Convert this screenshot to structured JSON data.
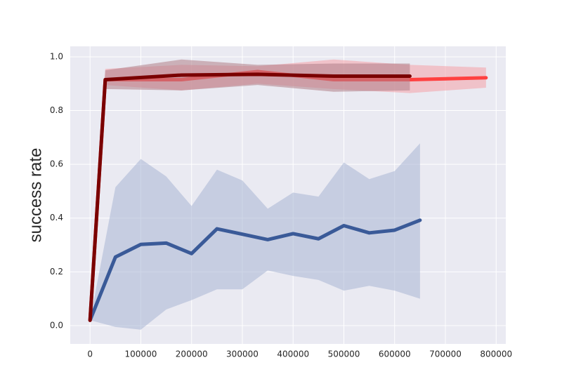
{
  "chart_data": {
    "type": "line",
    "y_label": "success rate",
    "xlim": [
      -39000,
      819000
    ],
    "ylim": [
      -0.068,
      1.039
    ],
    "xticks": [
      0,
      100000,
      200000,
      300000,
      400000,
      500000,
      600000,
      700000,
      800000
    ],
    "yticks": [
      {
        "value": 0,
        "label": "0.0"
      },
      0.2,
      0.4,
      0.6,
      0.8,
      {
        "value": 1,
        "label": "1.0"
      }
    ],
    "grid": true,
    "series": [
      {
        "color": "#3a5a98",
        "band_color": "#a8b4d4",
        "x": [
          0,
          50000,
          100000,
          150000,
          200000,
          250000,
          300000,
          350000,
          400000,
          450000,
          500000,
          550000,
          600000,
          650000
        ],
        "values": [
          0.02,
          0.255,
          0.302,
          0.307,
          0.268,
          0.36,
          0.34,
          0.32,
          0.342,
          0.323,
          0.372,
          0.345,
          0.355,
          0.392
        ],
        "lower": [
          0.02,
          -0.005,
          -0.015,
          0.06,
          0.095,
          0.135,
          0.135,
          0.205,
          0.185,
          0.17,
          0.13,
          0.148,
          0.13,
          0.1
        ],
        "upper": [
          0.02,
          0.515,
          0.62,
          0.555,
          0.445,
          0.58,
          0.54,
          0.435,
          0.495,
          0.48,
          0.607,
          0.545,
          0.575,
          0.678
        ]
      },
      {
        "color": "#ff4040",
        "band_color": "#f4a0a8",
        "x": [
          0,
          30000,
          180000,
          330000,
          480000,
          630000,
          780000
        ],
        "values": [
          0.02,
          0.915,
          0.915,
          0.945,
          0.915,
          0.915,
          0.922
        ],
        "lower": [
          0.02,
          0.895,
          0.875,
          0.9,
          0.88,
          0.865,
          0.885
        ],
        "upper": [
          0.02,
          0.955,
          0.97,
          0.965,
          0.99,
          0.97,
          0.96
        ]
      },
      {
        "color": "#7a0000",
        "band_color": "#b08088",
        "x": [
          0,
          30000,
          180000,
          330000,
          480000,
          630000
        ],
        "values": [
          0.02,
          0.915,
          0.932,
          0.935,
          0.928,
          0.928
        ],
        "lower": [
          0.02,
          0.88,
          0.875,
          0.895,
          0.87,
          0.875
        ],
        "upper": [
          0.02,
          0.95,
          0.99,
          0.97,
          0.975,
          0.975
        ]
      }
    ]
  }
}
